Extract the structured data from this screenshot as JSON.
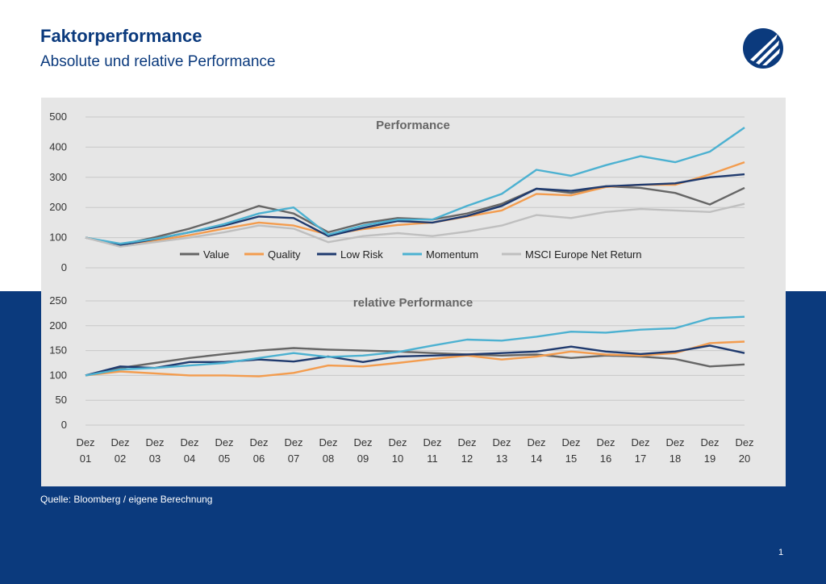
{
  "page": {
    "title": "Faktorperformance",
    "subtitle": "Absolute und relative Performance",
    "source": "Quelle: Bloomberg / eigene Berechnung",
    "page_number": "1"
  },
  "colors": {
    "brand": "#0b3a7d",
    "panel": "#e6e6e6",
    "Value": "#666666",
    "Quality": "#f39c4e",
    "Low Risk": "#1f3a6e",
    "Momentum": "#4cb1d1",
    "MSCI Europe Net Return": "#bfbfbf"
  },
  "chart_data": [
    {
      "type": "line",
      "title": "Performance",
      "ylim": [
        0,
        500
      ],
      "yticks": [
        0,
        100,
        200,
        300,
        400,
        500
      ],
      "grid": true,
      "legend": "bottom",
      "x": [
        2001,
        2002,
        2003,
        2004,
        2005,
        2006,
        2007,
        2008,
        2009,
        2010,
        2011,
        2012,
        2013,
        2014,
        2015,
        2016,
        2017,
        2018,
        2019,
        2020
      ],
      "series": [
        {
          "name": "Value",
          "values": [
            100,
            76,
            101,
            130,
            165,
            205,
            180,
            118,
            148,
            165,
            160,
            180,
            212,
            262,
            248,
            270,
            265,
            248,
            210,
            265
          ]
        },
        {
          "name": "Quality",
          "values": [
            100,
            78,
            90,
            108,
            130,
            150,
            140,
            110,
            128,
            142,
            150,
            170,
            190,
            245,
            240,
            268,
            275,
            275,
            310,
            350
          ]
        },
        {
          "name": "Low Risk",
          "values": [
            100,
            75,
            95,
            118,
            140,
            170,
            165,
            105,
            132,
            155,
            150,
            172,
            205,
            262,
            255,
            270,
            275,
            280,
            300,
            310
          ]
        },
        {
          "name": "Momentum",
          "values": [
            100,
            80,
            96,
            118,
            145,
            180,
            200,
            110,
            140,
            160,
            160,
            205,
            245,
            325,
            305,
            340,
            370,
            350,
            385,
            465
          ]
        },
        {
          "name": "MSCI Europe Net Return",
          "values": [
            100,
            70,
            85,
            100,
            118,
            140,
            130,
            85,
            105,
            115,
            105,
            120,
            140,
            175,
            165,
            185,
            195,
            190,
            185,
            212
          ]
        }
      ]
    },
    {
      "type": "line",
      "title": "relative Performance",
      "ylim": [
        0,
        250
      ],
      "yticks": [
        0,
        50,
        100,
        150,
        200,
        250
      ],
      "grid": true,
      "x": [
        2001,
        2002,
        2003,
        2004,
        2005,
        2006,
        2007,
        2008,
        2009,
        2010,
        2011,
        2012,
        2013,
        2014,
        2015,
        2016,
        2017,
        2018,
        2019,
        2020
      ],
      "xtick_labels": [
        [
          "Dez",
          "01"
        ],
        [
          "Dez",
          "02"
        ],
        [
          "Dez",
          "03"
        ],
        [
          "Dez",
          "04"
        ],
        [
          "Dez",
          "05"
        ],
        [
          "Dez",
          "06"
        ],
        [
          "Dez",
          "07"
        ],
        [
          "Dez",
          "08"
        ],
        [
          "Dez",
          "09"
        ],
        [
          "Dez",
          "10"
        ],
        [
          "Dez",
          "11"
        ],
        [
          "Dez",
          "12"
        ],
        [
          "Dez",
          "13"
        ],
        [
          "Dez",
          "14"
        ],
        [
          "Dez",
          "15"
        ],
        [
          "Dez",
          "16"
        ],
        [
          "Dez",
          "17"
        ],
        [
          "Dez",
          "18"
        ],
        [
          "Dez",
          "19"
        ],
        [
          "Dez",
          "20"
        ]
      ],
      "series": [
        {
          "name": "Value",
          "values": [
            100,
            115,
            125,
            135,
            143,
            150,
            155,
            152,
            150,
            148,
            145,
            142,
            140,
            142,
            135,
            140,
            138,
            133,
            118,
            122
          ]
        },
        {
          "name": "Quality",
          "values": [
            100,
            108,
            104,
            100,
            100,
            98,
            105,
            120,
            118,
            125,
            133,
            140,
            132,
            138,
            148,
            142,
            140,
            145,
            165,
            168
          ]
        },
        {
          "name": "Low Risk",
          "values": [
            100,
            118,
            115,
            127,
            127,
            132,
            128,
            138,
            127,
            138,
            140,
            142,
            145,
            148,
            158,
            148,
            143,
            148,
            160,
            145
          ]
        },
        {
          "name": "Momentum",
          "values": [
            100,
            112,
            115,
            120,
            125,
            135,
            145,
            137,
            140,
            147,
            160,
            172,
            170,
            178,
            188,
            186,
            192,
            195,
            215,
            218
          ]
        }
      ]
    }
  ]
}
